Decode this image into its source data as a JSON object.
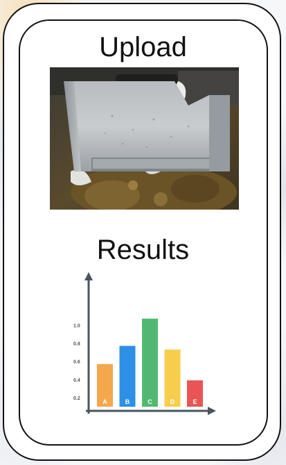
{
  "upload": {
    "title": "Upload",
    "preview_icon": "uploaded-photo-machine-part"
  },
  "results": {
    "title": "Results"
  },
  "chart_data": {
    "type": "bar",
    "categories": [
      "A",
      "B",
      "C",
      "D",
      "E"
    ],
    "values": [
      0.57,
      0.77,
      1.07,
      0.73,
      0.39
    ],
    "colors": [
      "#f4a74b",
      "#2e8fe6",
      "#52b871",
      "#f7cd4c",
      "#ea5454"
    ],
    "yticks": [
      "0.2",
      "0.4",
      "0.6",
      "0.8",
      "1.0"
    ],
    "ytick_values": [
      0.2,
      0.4,
      0.6,
      0.8,
      1.0
    ],
    "ylim": [
      0.1,
      1.4
    ],
    "axis_color": "#4a5560",
    "grid": false,
    "legend": "none"
  }
}
